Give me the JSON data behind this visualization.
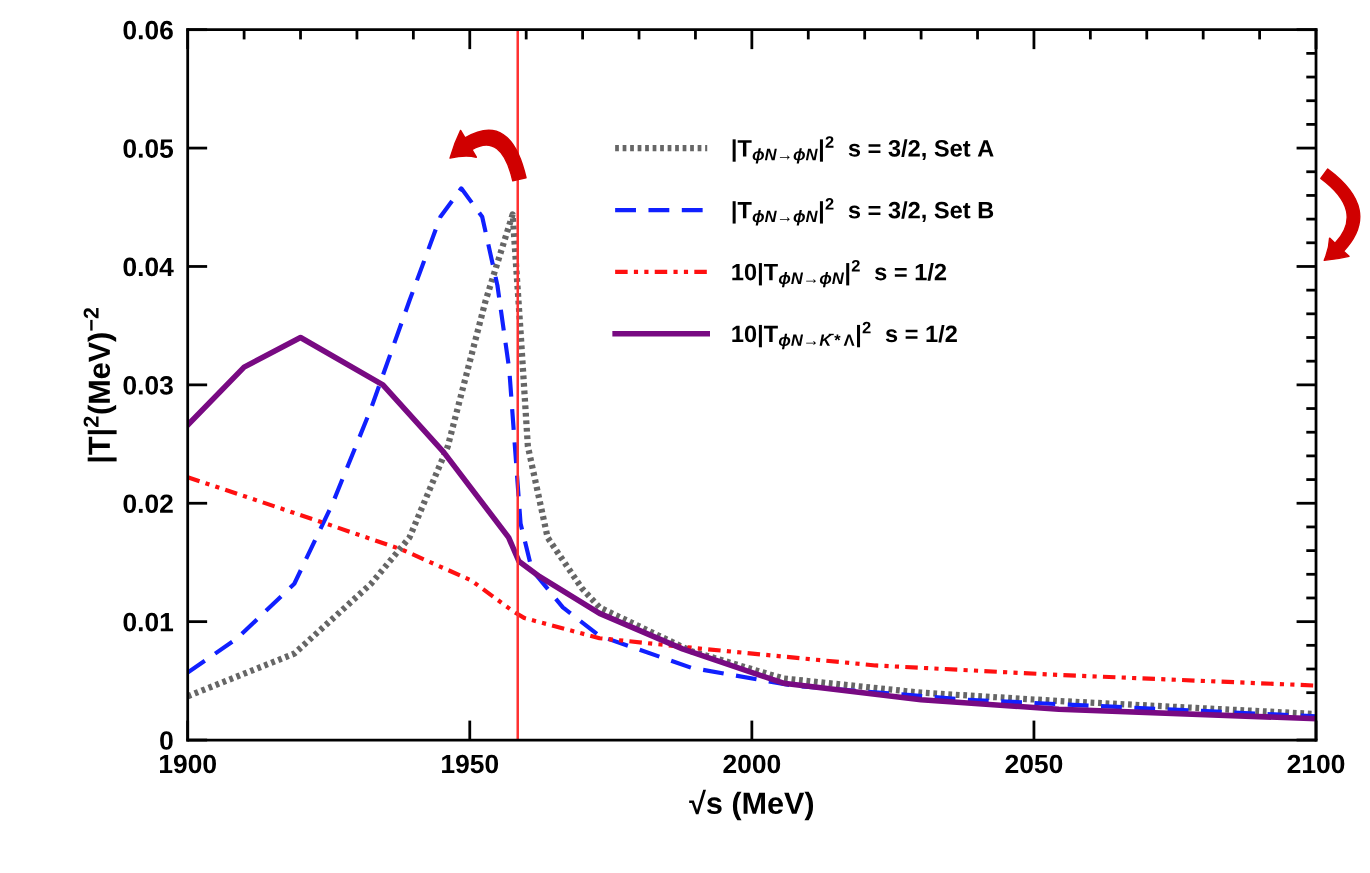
{
  "chart_data": {
    "type": "line",
    "xlabel": "√s (MeV)",
    "ylabel": "|T|$^{2}$(MeV)$^{−2}$",
    "xlim": [
      1900,
      2100
    ],
    "xticks": [
      1900,
      1950,
      2000,
      2050,
      2100
    ],
    "ylim": [
      0,
      0.06
    ],
    "yticks": [
      0,
      0.01,
      0.02,
      0.03,
      0.04,
      0.05,
      0.06
    ],
    "grid": false,
    "legend": "top right",
    "marker": "none",
    "ref_lines": [
      {
        "axis": "x",
        "value": 1958.5,
        "color": "#ff3030",
        "line_style": "solid"
      }
    ],
    "series": [
      {
        "name": "|T$_{ϕN→ϕN}$|$^{2}$  s = 3/2, Set A",
        "color": "#666666",
        "line_style": "dotted",
        "x": [
          1900,
          1918.9,
          1932.5,
          1939.3,
          1946.1,
          1952.8,
          1957.6,
          1959,
          1960.3,
          1963.8,
          1969.9,
          1973,
          1989.3,
          2005.6,
          2030,
          2054.4,
          2100
        ],
        "values": [
          0.0037,
          0.0073,
          0.0132,
          0.0171,
          0.0248,
          0.0371,
          0.0444,
          0.0345,
          0.0248,
          0.0171,
          0.0128,
          0.0112,
          0.0075,
          0.0052,
          0.004,
          0.0033,
          0.0022
        ]
      },
      {
        "name": "|T$_{ϕN→ϕN}$|$^{2}$  s = 3/2, Set B",
        "color": "#1020ff",
        "line_style": "dashed",
        "x": [
          1900,
          1908.8,
          1918.9,
          1925.7,
          1932.5,
          1939.3,
          1944.8,
          1948.5,
          1952.2,
          1954.9,
          1957,
          1958,
          1959,
          1961,
          1966.5,
          1973,
          1989.3,
          2007.2,
          2038.2,
          2100
        ],
        "values": [
          0.0057,
          0.0086,
          0.0132,
          0.02,
          0.028,
          0.0371,
          0.0442,
          0.0466,
          0.0442,
          0.0384,
          0.0313,
          0.0248,
          0.0183,
          0.0144,
          0.0112,
          0.0088,
          0.0061,
          0.0046,
          0.0034,
          0.002
        ]
      },
      {
        "name": "10|T$_{ϕN→ϕN}$|$^{2}$  s = 1/2",
        "color": "#ff1010",
        "line_style": "dashdot",
        "x": [
          1900,
          1924.4,
          1937.9,
          1950.2,
          1957.6,
          1959.7,
          1973,
          1989.3,
          2021.9,
          2054.4,
          2100
        ],
        "values": [
          0.0222,
          0.0183,
          0.0161,
          0.0135,
          0.0109,
          0.0103,
          0.0086,
          0.0078,
          0.0063,
          0.0055,
          0.0046
        ]
      },
      {
        "name": "10|T$_{ϕN→K̄*Λ}$|$^{2}$  s = 1/2",
        "color": "#780a82",
        "line_style": "solid",
        "x": [
          1900,
          1910,
          1920,
          1934.6,
          1945.4,
          1956.9,
          1958.7,
          1962.4,
          1973,
          1987.7,
          2005.6,
          2030,
          2054.4,
          2100
        ],
        "values": [
          0.0266,
          0.0315,
          0.034,
          0.03,
          0.0243,
          0.0171,
          0.0151,
          0.0138,
          0.0107,
          0.0077,
          0.0048,
          0.0034,
          0.0026,
          0.0018
        ]
      }
    ]
  }
}
